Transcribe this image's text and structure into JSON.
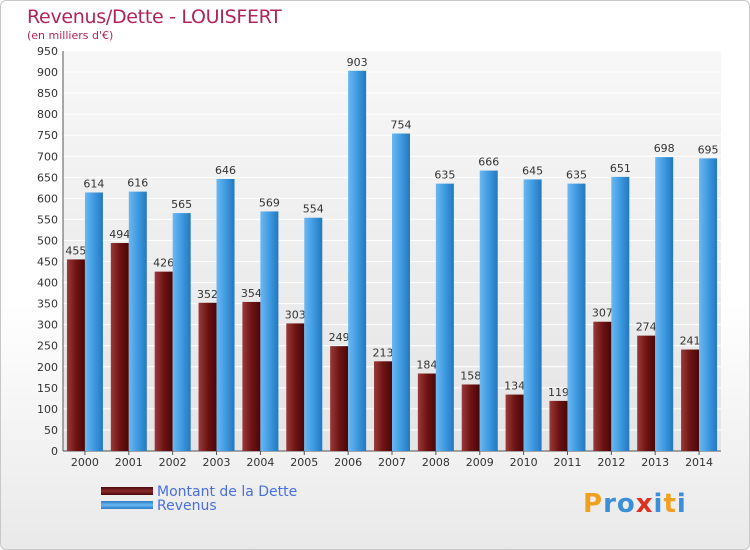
{
  "chart_data": {
    "type": "bar",
    "title": "Revenus/Dette - LOUISFERT",
    "subtitle": "(en milliers d'€)",
    "categories": [
      "2000",
      "2001",
      "2002",
      "2003",
      "2004",
      "2005",
      "2006",
      "2007",
      "2008",
      "2009",
      "2010",
      "2011",
      "2012",
      "2013",
      "2014"
    ],
    "series": [
      {
        "name": "Montant de la Dette",
        "color": "#7a1a1a",
        "values": [
          455,
          494,
          426,
          352,
          354,
          303,
          249,
          213,
          184,
          158,
          134,
          119,
          307,
          274,
          241
        ]
      },
      {
        "name": "Revenus",
        "color": "#3a95dd",
        "values": [
          614,
          616,
          565,
          646,
          569,
          554,
          903,
          754,
          635,
          666,
          645,
          635,
          651,
          698,
          695
        ]
      }
    ],
    "ylim": [
      0,
      950
    ],
    "yticks": [
      0,
      50,
      100,
      150,
      200,
      250,
      300,
      350,
      400,
      450,
      500,
      550,
      600,
      650,
      700,
      750,
      800,
      850,
      900,
      950
    ],
    "grid": true,
    "legend_position": "bottom-left"
  },
  "logo": {
    "text": "Proxiti",
    "letters": [
      {
        "ch": "P",
        "color": "#f0a020"
      },
      {
        "ch": "r",
        "color": "#3a8fd8"
      },
      {
        "ch": "o",
        "color": "#3a8fd8"
      },
      {
        "ch": "x",
        "color": "#e03020"
      },
      {
        "ch": "i",
        "color": "#3a8fd8"
      },
      {
        "ch": "t",
        "color": "#f0a020"
      },
      {
        "ch": "i",
        "color": "#3a8fd8"
      }
    ]
  }
}
